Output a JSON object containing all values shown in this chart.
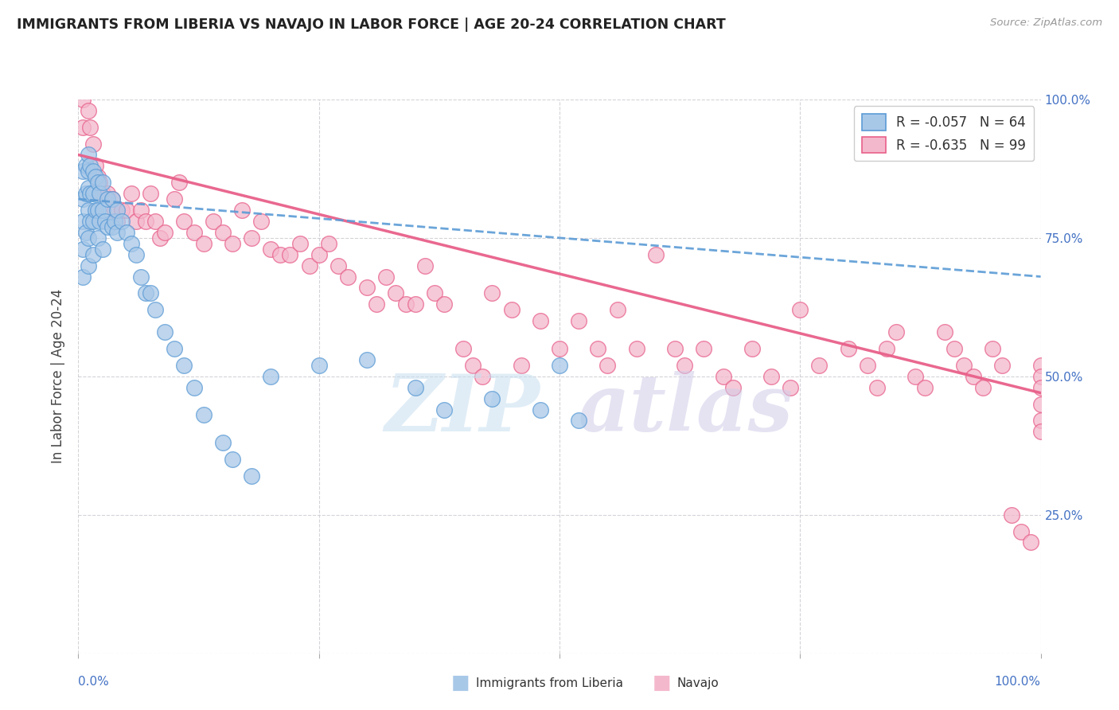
{
  "title": "IMMIGRANTS FROM LIBERIA VS NAVAJO IN LABOR FORCE | AGE 20-24 CORRELATION CHART",
  "source": "Source: ZipAtlas.com",
  "ylabel": "In Labor Force | Age 20-24",
  "xlim": [
    0.0,
    1.0
  ],
  "ylim": [
    0.0,
    1.0
  ],
  "liberia_color": "#a8c8e8",
  "navajo_color": "#f4b8cc",
  "liberia_edge_color": "#5b9bd5",
  "navajo_edge_color": "#e8608a",
  "liberia_R": -0.057,
  "liberia_N": 64,
  "navajo_R": -0.635,
  "navajo_N": 99,
  "liberia_line_start_y": 0.82,
  "liberia_line_end_y": 0.68,
  "navajo_line_start_y": 0.9,
  "navajo_line_end_y": 0.47,
  "liberia_scatter_x": [
    0.005,
    0.005,
    0.005,
    0.005,
    0.005,
    0.008,
    0.008,
    0.008,
    0.01,
    0.01,
    0.01,
    0.01,
    0.01,
    0.01,
    0.012,
    0.012,
    0.012,
    0.015,
    0.015,
    0.015,
    0.015,
    0.018,
    0.018,
    0.02,
    0.02,
    0.02,
    0.022,
    0.022,
    0.025,
    0.025,
    0.025,
    0.028,
    0.03,
    0.03,
    0.035,
    0.035,
    0.038,
    0.04,
    0.04,
    0.045,
    0.05,
    0.055,
    0.06,
    0.065,
    0.07,
    0.075,
    0.08,
    0.09,
    0.1,
    0.11,
    0.12,
    0.13,
    0.15,
    0.16,
    0.18,
    0.2,
    0.25,
    0.3,
    0.35,
    0.38,
    0.43,
    0.48,
    0.5,
    0.52
  ],
  "liberia_scatter_y": [
    0.87,
    0.82,
    0.78,
    0.73,
    0.68,
    0.88,
    0.83,
    0.76,
    0.9,
    0.87,
    0.84,
    0.8,
    0.75,
    0.7,
    0.88,
    0.83,
    0.78,
    0.87,
    0.83,
    0.78,
    0.72,
    0.86,
    0.8,
    0.85,
    0.8,
    0.75,
    0.83,
    0.78,
    0.85,
    0.8,
    0.73,
    0.78,
    0.82,
    0.77,
    0.82,
    0.77,
    0.78,
    0.8,
    0.76,
    0.78,
    0.76,
    0.74,
    0.72,
    0.68,
    0.65,
    0.65,
    0.62,
    0.58,
    0.55,
    0.52,
    0.48,
    0.43,
    0.38,
    0.35,
    0.32,
    0.5,
    0.52,
    0.53,
    0.48,
    0.44,
    0.46,
    0.44,
    0.52,
    0.42
  ],
  "navajo_scatter_x": [
    0.005,
    0.005,
    0.01,
    0.012,
    0.015,
    0.018,
    0.02,
    0.022,
    0.025,
    0.03,
    0.035,
    0.038,
    0.04,
    0.045,
    0.05,
    0.055,
    0.06,
    0.065,
    0.07,
    0.075,
    0.08,
    0.085,
    0.09,
    0.1,
    0.105,
    0.11,
    0.12,
    0.13,
    0.14,
    0.15,
    0.16,
    0.17,
    0.18,
    0.19,
    0.2,
    0.21,
    0.22,
    0.23,
    0.24,
    0.25,
    0.26,
    0.27,
    0.28,
    0.3,
    0.31,
    0.32,
    0.33,
    0.34,
    0.35,
    0.36,
    0.37,
    0.38,
    0.4,
    0.41,
    0.42,
    0.43,
    0.45,
    0.46,
    0.48,
    0.5,
    0.52,
    0.54,
    0.55,
    0.56,
    0.58,
    0.6,
    0.62,
    0.63,
    0.65,
    0.67,
    0.68,
    0.7,
    0.72,
    0.74,
    0.75,
    0.77,
    0.8,
    0.82,
    0.83,
    0.84,
    0.85,
    0.87,
    0.88,
    0.9,
    0.91,
    0.92,
    0.93,
    0.94,
    0.95,
    0.96,
    0.97,
    0.98,
    0.99,
    1.0,
    1.0,
    1.0,
    1.0,
    1.0,
    1.0
  ],
  "navajo_scatter_y": [
    1.0,
    0.95,
    0.98,
    0.95,
    0.92,
    0.88,
    0.86,
    0.85,
    0.83,
    0.83,
    0.82,
    0.8,
    0.78,
    0.8,
    0.8,
    0.83,
    0.78,
    0.8,
    0.78,
    0.83,
    0.78,
    0.75,
    0.76,
    0.82,
    0.85,
    0.78,
    0.76,
    0.74,
    0.78,
    0.76,
    0.74,
    0.8,
    0.75,
    0.78,
    0.73,
    0.72,
    0.72,
    0.74,
    0.7,
    0.72,
    0.74,
    0.7,
    0.68,
    0.66,
    0.63,
    0.68,
    0.65,
    0.63,
    0.63,
    0.7,
    0.65,
    0.63,
    0.55,
    0.52,
    0.5,
    0.65,
    0.62,
    0.52,
    0.6,
    0.55,
    0.6,
    0.55,
    0.52,
    0.62,
    0.55,
    0.72,
    0.55,
    0.52,
    0.55,
    0.5,
    0.48,
    0.55,
    0.5,
    0.48,
    0.62,
    0.52,
    0.55,
    0.52,
    0.48,
    0.55,
    0.58,
    0.5,
    0.48,
    0.58,
    0.55,
    0.52,
    0.5,
    0.48,
    0.55,
    0.52,
    0.25,
    0.22,
    0.2,
    0.52,
    0.5,
    0.48,
    0.45,
    0.42,
    0.4
  ]
}
